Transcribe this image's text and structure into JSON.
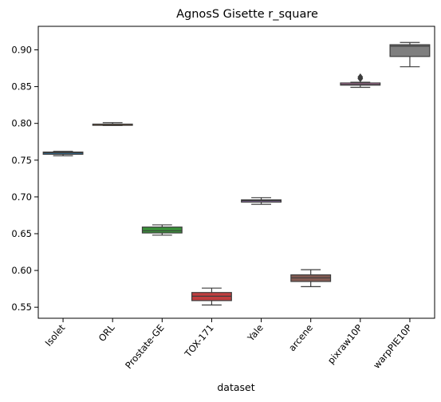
{
  "chart_data": {
    "type": "boxplot",
    "title": "AgnosS Gisette r_square",
    "xlabel": "dataset",
    "ylabel": "",
    "ylim": [
      0.535,
      0.932
    ],
    "yticks": [
      "0.55",
      "0.60",
      "0.65",
      "0.70",
      "0.75",
      "0.80",
      "0.85",
      "0.90"
    ],
    "categories": [
      "Isolet",
      "ORL",
      "Prostate-GE",
      "TOX-171",
      "Yale",
      "arcene",
      "pixraw10P",
      "warpPIE10P"
    ],
    "boxes": [
      {
        "name": "Isolet",
        "min": 0.756,
        "q1": 0.758,
        "median": 0.76,
        "q3": 0.761,
        "max": 0.762,
        "outliers": [],
        "color": "#3274a1"
      },
      {
        "name": "ORL",
        "min": 0.797,
        "q1": 0.798,
        "median": 0.799,
        "q3": 0.799,
        "max": 0.801,
        "outliers": [],
        "color": "#e1812c"
      },
      {
        "name": "Prostate-GE",
        "min": 0.648,
        "q1": 0.651,
        "median": 0.654,
        "q3": 0.659,
        "max": 0.662,
        "outliers": [],
        "color": "#3a923a"
      },
      {
        "name": "TOX-171",
        "min": 0.553,
        "q1": 0.559,
        "median": 0.565,
        "q3": 0.57,
        "max": 0.576,
        "outliers": [],
        "color": "#c03d3e"
      },
      {
        "name": "Yale",
        "min": 0.69,
        "q1": 0.693,
        "median": 0.695,
        "q3": 0.696,
        "max": 0.699,
        "outliers": [],
        "color": "#9372b2"
      },
      {
        "name": "arcene",
        "min": 0.578,
        "q1": 0.585,
        "median": 0.59,
        "q3": 0.594,
        "max": 0.601,
        "outliers": [],
        "color": "#845b53"
      },
      {
        "name": "pixraw10P",
        "min": 0.849,
        "q1": 0.852,
        "median": 0.853,
        "q3": 0.855,
        "max": 0.856,
        "outliers": [
          0.861,
          0.863
        ],
        "color": "#d684bd"
      },
      {
        "name": "warpPIE10P",
        "min": 0.877,
        "q1": 0.891,
        "median": 0.905,
        "q3": 0.907,
        "max": 0.91,
        "outliers": [],
        "color": "#7f7f7f"
      }
    ]
  }
}
